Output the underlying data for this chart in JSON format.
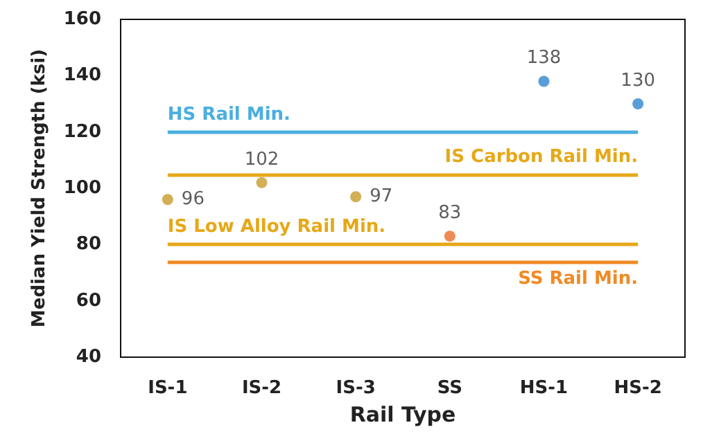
{
  "chart_data": {
    "type": "scatter",
    "xlabel": "Rail Type",
    "ylabel": "Median Yield Strength (ksi)",
    "categories": [
      "IS-1",
      "IS-2",
      "IS-3",
      "SS",
      "HS-1",
      "HS-2"
    ],
    "series": [
      {
        "values": [
          96,
          102,
          97,
          83,
          138,
          130
        ],
        "colors": [
          "#c89b2e",
          "#c89b2e",
          "#c89b2e",
          "#e8702a",
          "#2f86d0",
          "#2f86d0"
        ]
      }
    ],
    "ylim": [
      40,
      160
    ],
    "yticks": [
      40,
      60,
      80,
      100,
      120,
      140,
      160
    ],
    "data_labels": true,
    "marker": "circle",
    "ref_lines": [
      {
        "axis": "y",
        "value": 120,
        "label": "HS Rail Min.",
        "color": "#4aaee0"
      },
      {
        "axis": "y",
        "value": 105,
        "label": "IS Carbon Rail Min.",
        "color": "#e6a817"
      },
      {
        "axis": "y",
        "value": 80,
        "label": "IS Low Alloy Rail Min.",
        "color": "#e6a817"
      },
      {
        "axis": "y",
        "value": 74,
        "label": "SS Rail Min.",
        "color": "#f08a24"
      }
    ]
  }
}
